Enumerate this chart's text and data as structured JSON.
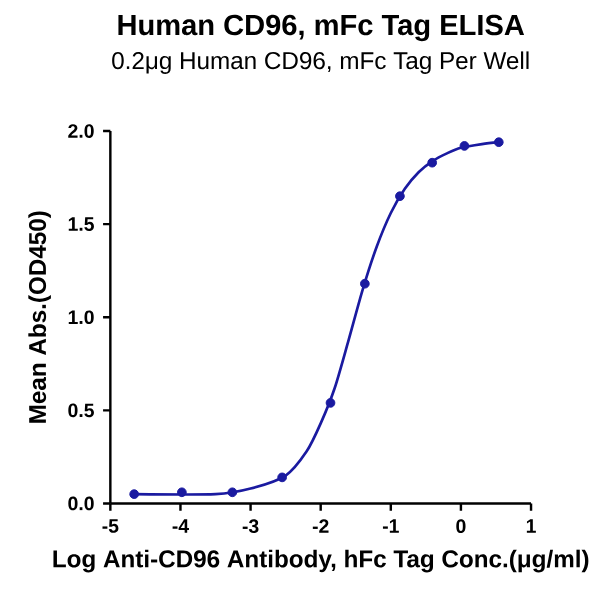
{
  "chart_data": {
    "type": "scatter",
    "title": "Human CD96, mFc Tag ELISA",
    "subtitle": "0.2μg Human CD96, mFc Tag Per Well",
    "xlabel": "Log Anti-CD96 Antibody, hFc Tag Conc.(μg/ml)",
    "ylabel": "Mean Abs.(OD450)",
    "xlim": [
      -5,
      1
    ],
    "ylim": [
      0,
      2.0
    ],
    "xticks": [
      -5,
      -4,
      -3,
      -2,
      -1,
      0,
      1
    ],
    "yticks": [
      {
        "value": 0,
        "label": "0.0"
      },
      {
        "value": 0.5,
        "label": "0.5"
      },
      {
        "value": 1.0,
        "label": "1.0"
      },
      {
        "value": 1.5,
        "label": "1.5"
      },
      {
        "value": 2.0,
        "label": "2.0"
      }
    ],
    "grid": false,
    "series": [
      {
        "color": "#1a1aa0",
        "marker": "circle",
        "x": [
          -4.66,
          -3.98,
          -3.26,
          -2.55,
          -1.86,
          -1.37,
          -0.87,
          -0.41,
          0.05,
          0.54
        ],
        "values": [
          0.05,
          0.06,
          0.06,
          0.14,
          0.54,
          1.18,
          1.65,
          1.83,
          1.92,
          1.94
        ]
      },
      {
        "type": "line",
        "color": "#1a1aa0",
        "marker": "none",
        "line_style": "solid",
        "x": [
          -4.66,
          -3.5,
          -3.0,
          -2.5,
          -2.2,
          -2.0,
          -1.8,
          -1.6,
          -1.4,
          -1.2,
          -1.0,
          -0.8,
          -0.6,
          -0.4,
          -0.2,
          0.0,
          0.3,
          0.54
        ],
        "values": [
          0.05,
          0.05,
          0.08,
          0.15,
          0.28,
          0.43,
          0.62,
          0.88,
          1.15,
          1.38,
          1.56,
          1.69,
          1.78,
          1.84,
          1.88,
          1.91,
          1.93,
          1.94
        ]
      }
    ]
  }
}
